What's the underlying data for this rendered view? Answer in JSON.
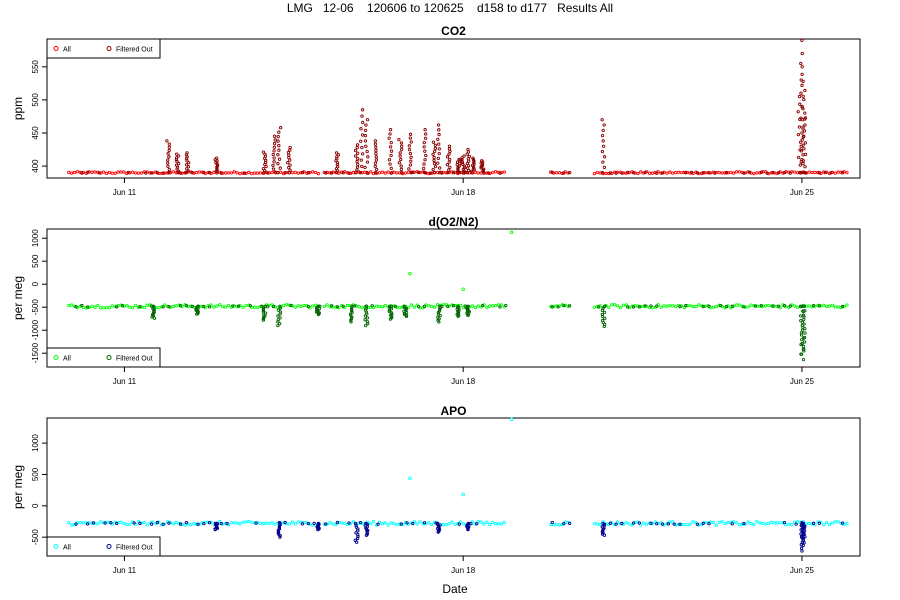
{
  "page_title": "LMG   12-06    120606 to 120625    d158 to d177   Results All",
  "xlabel": "Date",
  "x_ticks": [
    "Jun 11",
    "Jun 18",
    "Jun 25"
  ],
  "chart_data": [
    {
      "type": "scatter",
      "title": "CO2",
      "ylabel": "ppm",
      "x_ticks": [
        "Jun 11",
        "Jun 18",
        "Jun 25"
      ],
      "y_ticks": [
        400,
        450,
        500,
        550
      ],
      "ylim": [
        382,
        592
      ],
      "legend_position": "top-left",
      "colors": {
        "all": "#ff0000",
        "filtered": "#8b0000"
      },
      "series": [
        {
          "name": "All",
          "baseline": 390,
          "points": [
            [
              "Jun 9.8",
              390
            ],
            [
              "Jun 25.9",
              390
            ]
          ]
        },
        {
          "name": "Filtered Out",
          "peaks": [
            [
              11.9,
              438
            ],
            [
              12.1,
              418
            ],
            [
              12.3,
              420
            ],
            [
              12.9,
              412
            ],
            [
              13.9,
              421
            ],
            [
              14.1,
              445
            ],
            [
              14.2,
              458
            ],
            [
              14.4,
              428
            ],
            [
              15.4,
              420
            ],
            [
              15.8,
              432
            ],
            [
              15.9,
              485
            ],
            [
              16.0,
              470
            ],
            [
              16.2,
              438
            ],
            [
              16.5,
              455
            ],
            [
              16.7,
              440
            ],
            [
              16.9,
              448
            ],
            [
              17.2,
              455
            ],
            [
              17.4,
              436
            ],
            [
              17.5,
              462
            ],
            [
              17.7,
              430
            ],
            [
              17.9,
              410
            ],
            [
              18.0,
              415
            ],
            [
              18.1,
              425
            ],
            [
              18.2,
              412
            ],
            [
              18.4,
              408
            ],
            [
              20.9,
              470
            ],
            [
              25.0,
              590
            ],
            [
              25.0,
              555
            ],
            [
              25.05,
              528
            ],
            [
              24.95,
              505
            ],
            [
              25.05,
              480
            ]
          ]
        }
      ]
    },
    {
      "type": "scatter",
      "title": "d(O2/N2)",
      "ylabel": "per meg",
      "x_ticks": [
        "Jun 11",
        "Jun 18",
        "Jun 25"
      ],
      "y_ticks": [
        -1500,
        -1000,
        -500,
        0,
        500,
        1000
      ],
      "ylim": [
        -1800,
        1200
      ],
      "legend_position": "bottom-left",
      "colors": {
        "all": "#00ff00",
        "filtered": "#006400"
      },
      "series": [
        {
          "name": "All",
          "baseline": -480,
          "outliers": [
            [
              16.9,
              230
            ],
            [
              18.0,
              -110
            ],
            [
              19.0,
              1130
            ]
          ]
        },
        {
          "name": "Filtered Out",
          "dips": [
            [
              11.6,
              -740
            ],
            [
              12.5,
              -650
            ],
            [
              13.9,
              -780
            ],
            [
              14.2,
              -900
            ],
            [
              15.0,
              -660
            ],
            [
              15.7,
              -820
            ],
            [
              16.0,
              -900
            ],
            [
              16.5,
              -760
            ],
            [
              16.8,
              -700
            ],
            [
              17.5,
              -820
            ],
            [
              17.9,
              -700
            ],
            [
              18.1,
              -680
            ],
            [
              20.9,
              -920
            ],
            [
              25.0,
              -1520
            ],
            [
              25.02,
              -1640
            ],
            [
              25.04,
              -1450
            ]
          ]
        }
      ]
    },
    {
      "type": "scatter",
      "title": "APO",
      "ylabel": "per meg",
      "x_ticks": [
        "Jun 11",
        "Jun 18",
        "Jun 25"
      ],
      "y_ticks": [
        -500,
        0,
        500,
        1000
      ],
      "ylim": [
        -800,
        1400
      ],
      "legend_position": "bottom-left",
      "colors": {
        "all": "#00ffff",
        "filtered": "#00008b"
      },
      "series": [
        {
          "name": "All",
          "baseline": -280,
          "outliers": [
            [
              16.9,
              440
            ],
            [
              18.0,
              180
            ],
            [
              19.0,
              1380
            ]
          ]
        },
        {
          "name": "Filtered Out",
          "dips": [
            [
              12.9,
              -380
            ],
            [
              14.2,
              -500
            ],
            [
              15.0,
              -380
            ],
            [
              15.8,
              -580
            ],
            [
              16.0,
              -470
            ],
            [
              17.5,
              -420
            ],
            [
              18.1,
              -380
            ],
            [
              20.9,
              -470
            ],
            [
              25.0,
              -620
            ],
            [
              25.02,
              -720
            ],
            [
              25.04,
              -520
            ]
          ]
        }
      ]
    }
  ],
  "legend": {
    "all_label": "All",
    "filtered_label": "Filtered Out"
  }
}
